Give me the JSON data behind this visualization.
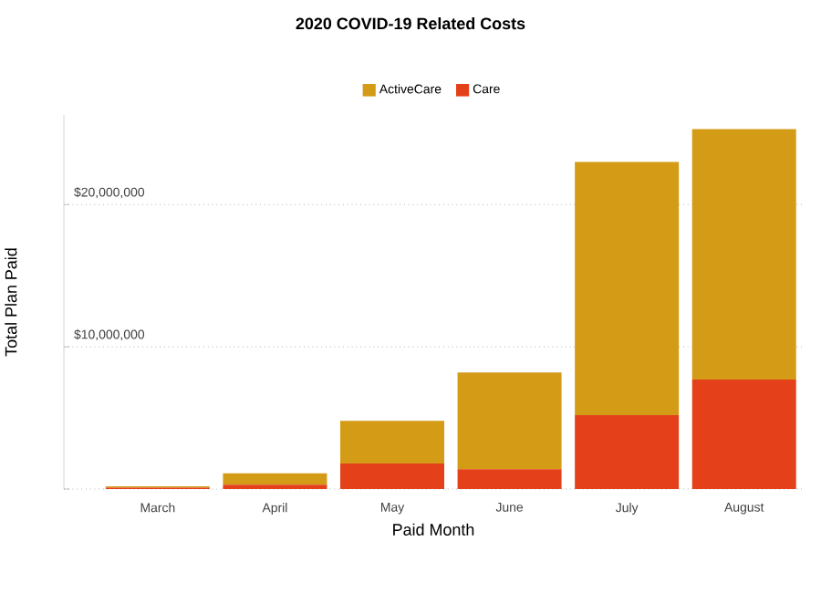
{
  "chart_data": {
    "type": "bar",
    "title": "2020 COVID-19 Related Costs",
    "xlabel": "Paid Month",
    "ylabel": "Total Plan Paid",
    "categories": [
      "March",
      "April",
      "May",
      "June",
      "July",
      "August"
    ],
    "stacked": true,
    "legend": "top",
    "grid": "y",
    "ylim": [
      0,
      26300000
    ],
    "yticks": [
      {
        "value": 0,
        "label": null
      },
      {
        "value": 10000000,
        "label": "$10,000,000"
      },
      {
        "value": 20000000,
        "label": "$20,000,000"
      }
    ],
    "series": [
      {
        "name": "Care",
        "color": "#e4411b",
        "values": [
          100000,
          300000,
          1800000,
          1400000,
          5200000,
          7700000
        ]
      },
      {
        "name": "ActiveCare",
        "color": "#d49b17",
        "values": [
          100000,
          800000,
          3000000,
          6800000,
          17800000,
          17600000
        ]
      }
    ]
  }
}
